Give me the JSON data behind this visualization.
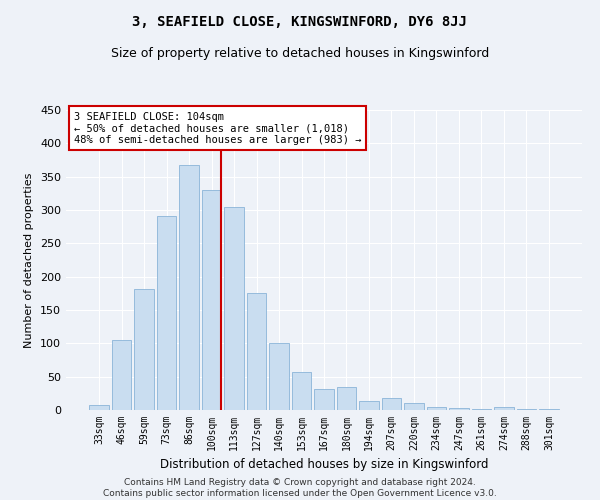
{
  "title": "3, SEAFIELD CLOSE, KINGSWINFORD, DY6 8JJ",
  "subtitle": "Size of property relative to detached houses in Kingswinford",
  "xlabel": "Distribution of detached houses by size in Kingswinford",
  "ylabel": "Number of detached properties",
  "categories": [
    "33sqm",
    "46sqm",
    "59sqm",
    "73sqm",
    "86sqm",
    "100sqm",
    "113sqm",
    "127sqm",
    "140sqm",
    "153sqm",
    "167sqm",
    "180sqm",
    "194sqm",
    "207sqm",
    "220sqm",
    "234sqm",
    "247sqm",
    "261sqm",
    "274sqm",
    "288sqm",
    "301sqm"
  ],
  "values": [
    8,
    105,
    181,
    291,
    367,
    330,
    305,
    175,
    100,
    57,
    31,
    35,
    14,
    18,
    10,
    5,
    3,
    1,
    4,
    2,
    1
  ],
  "bar_color": "#c9ddf0",
  "bar_edge_color": "#8ab4d8",
  "vline_color": "#cc0000",
  "annotation_text": "3 SEAFIELD CLOSE: 104sqm\n← 50% of detached houses are smaller (1,018)\n48% of semi-detached houses are larger (983) →",
  "annotation_box_color": "#ffffff",
  "annotation_box_edge": "#cc0000",
  "ylim": [
    0,
    450
  ],
  "yticks": [
    0,
    50,
    100,
    150,
    200,
    250,
    300,
    350,
    400,
    450
  ],
  "footer": "Contains HM Land Registry data © Crown copyright and database right 2024.\nContains public sector information licensed under the Open Government Licence v3.0.",
  "bg_color": "#eef2f8",
  "grid_color": "#ffffff",
  "title_fontsize": 10,
  "subtitle_fontsize": 9
}
